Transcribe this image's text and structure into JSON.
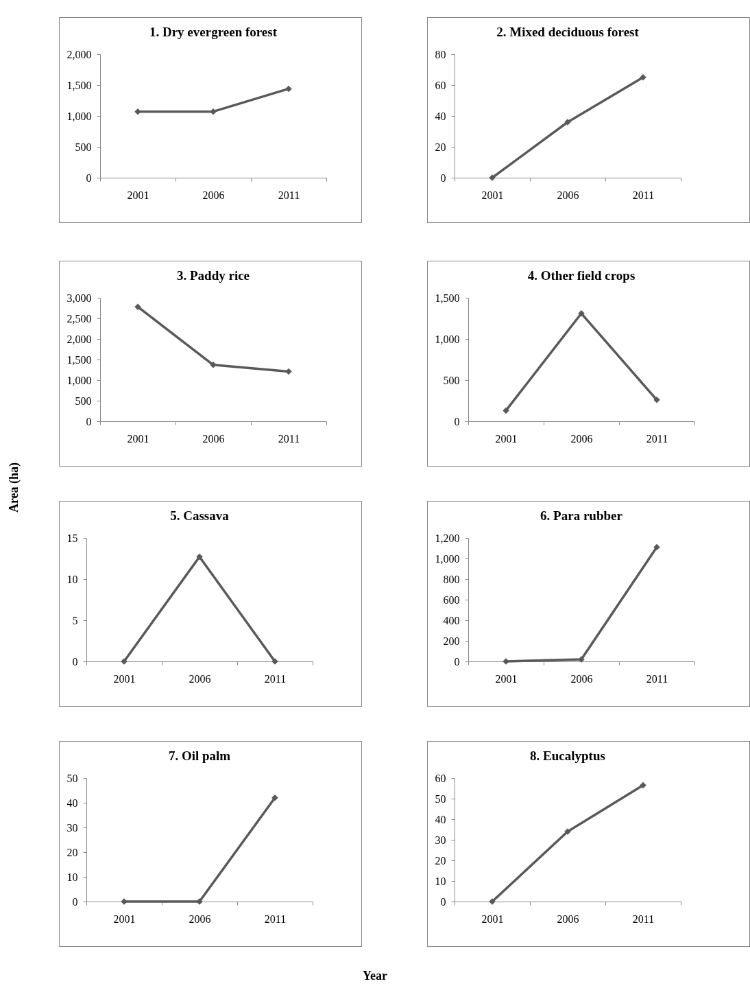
{
  "chart_data": [
    {
      "type": "line",
      "title": "1. Dry evergreen forest",
      "categories": [
        "2001",
        "2006",
        "2011"
      ],
      "series": [
        {
          "color": "#595959",
          "values": [
            1070,
            1070,
            1440
          ]
        }
      ],
      "ylim": [
        0,
        2000
      ],
      "yticks": [
        0,
        500,
        {
          "value": 1000,
          "label": "1,000"
        },
        {
          "value": 1500,
          "label": "1,500"
        },
        {
          "value": 2000,
          "label": "2,000"
        }
      ],
      "marker": "diamond",
      "line_style": "solid",
      "legend": false
    },
    {
      "type": "line",
      "title": "2.  Mixed deciduous forest",
      "categories": [
        "2001",
        "2006",
        "2011"
      ],
      "series": [
        {
          "color": "#595959",
          "values": [
            0,
            36,
            65
          ]
        }
      ],
      "ylim": [
        0,
        80
      ],
      "yticks": [
        0,
        20,
        40,
        60,
        80
      ],
      "marker": "diamond",
      "line_style": "solid",
      "legend": false
    },
    {
      "type": "line",
      "title": "3.  Paddy rice",
      "categories": [
        "2001",
        "2006",
        "2011"
      ],
      "series": [
        {
          "color": "#595959",
          "values": [
            2780,
            1370,
            1210
          ]
        }
      ],
      "ylim": [
        0,
        3000
      ],
      "yticks": [
        0,
        500,
        {
          "value": 1000,
          "label": "1,000"
        },
        {
          "value": 1500,
          "label": "1,500"
        },
        {
          "value": 2000,
          "label": "2,000"
        },
        {
          "value": 2500,
          "label": "2,500"
        },
        {
          "value": 3000,
          "label": "3,000"
        }
      ],
      "marker": "diamond",
      "line_style": "solid",
      "legend": false
    },
    {
      "type": "line",
      "title": "4.  Other  field crops",
      "categories": [
        "2001",
        "2006",
        "2011"
      ],
      "series": [
        {
          "color": "#595959",
          "values": [
            130,
            1310,
            260
          ]
        }
      ],
      "ylim": [
        0,
        1500
      ],
      "yticks": [
        0,
        500,
        {
          "value": 1000,
          "label": "1,000"
        },
        {
          "value": 1500,
          "label": "1,500"
        }
      ],
      "marker": "diamond",
      "line_style": "solid",
      "legend": false
    },
    {
      "type": "line",
      "title": "5.  Cassava",
      "ylabel": "Area (ha)",
      "categories": [
        "2001",
        "2006",
        "2011"
      ],
      "series": [
        {
          "color": "#595959",
          "values": [
            0,
            12.7,
            0
          ]
        }
      ],
      "ylim": [
        0,
        15
      ],
      "yticks": [
        0,
        5,
        10,
        15
      ],
      "marker": "diamond",
      "line_style": "solid",
      "legend": false
    },
    {
      "type": "line",
      "title": "6.  Para rubber",
      "categories": [
        "2001",
        "2006",
        "2011"
      ],
      "series": [
        {
          "color": "#595959",
          "values": [
            0,
            20,
            1110
          ]
        }
      ],
      "ylim": [
        0,
        1200
      ],
      "yticks": [
        0,
        200,
        400,
        600,
        800,
        {
          "value": 1000,
          "label": "1,000"
        },
        {
          "value": 1200,
          "label": "1,200"
        }
      ],
      "marker": "diamond",
      "line_style": "solid",
      "legend": false
    },
    {
      "type": "line",
      "title": "7.  Oil palm",
      "categories": [
        "2001",
        "2006",
        "2011"
      ],
      "series": [
        {
          "color": "#595959",
          "values": [
            0,
            0,
            42
          ]
        }
      ],
      "ylim": [
        0,
        50
      ],
      "yticks": [
        0,
        10,
        20,
        30,
        40,
        50
      ],
      "marker": "diamond",
      "line_style": "solid",
      "legend": false
    },
    {
      "type": "line",
      "title": "8.  Eucalyptus",
      "annotations": [
        "Year"
      ],
      "categories": [
        "2001",
        "2006",
        "2011"
      ],
      "series": [
        {
          "color": "#595959",
          "values": [
            0,
            34,
            56.5
          ]
        }
      ],
      "ylim": [
        0,
        60
      ],
      "yticks": [
        0,
        10,
        20,
        30,
        40,
        50,
        60
      ],
      "marker": "diamond",
      "line_style": "solid",
      "legend": false
    }
  ]
}
